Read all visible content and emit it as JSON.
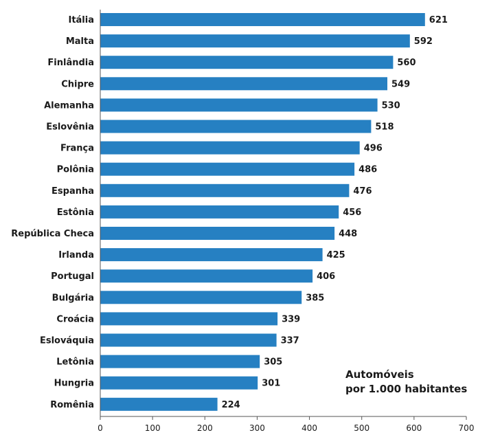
{
  "chart_data": {
    "type": "bar",
    "orientation": "horizontal",
    "categories": [
      "Itália",
      "Malta",
      "Finlândia",
      "Chipre",
      "Alemanha",
      "Eslovênia",
      "França",
      "Polônia",
      "Espanha",
      "Estônia",
      "República Checa",
      "Irlanda",
      "Portugal",
      "Bulgária",
      "Croácia",
      "Eslováquia",
      "Letônia",
      "Hungria",
      "Romênia"
    ],
    "values": [
      621,
      592,
      560,
      549,
      530,
      518,
      496,
      486,
      476,
      456,
      448,
      425,
      406,
      385,
      339,
      337,
      305,
      301,
      224
    ],
    "value_labels": [
      "621",
      "592",
      "560",
      "549",
      "530",
      "518",
      "496",
      "486",
      "476",
      "456",
      "448",
      "425",
      "406",
      "385",
      "339",
      "337",
      "305",
      "301",
      "224"
    ],
    "xlim": [
      0,
      700
    ],
    "xticks": [
      0,
      100,
      200,
      300,
      400,
      500,
      600,
      700
    ],
    "xtick_labels": [
      "0",
      "100",
      "200",
      "300",
      "400",
      "500",
      "600",
      "700"
    ],
    "grid": false,
    "bar_color": "#2680c2",
    "annotation": {
      "line1": "Automóveis",
      "line2": "por 1.000 habitantes",
      "placement": "bottom-right"
    }
  }
}
